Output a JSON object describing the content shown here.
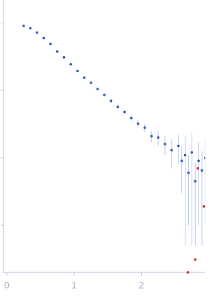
{
  "chart_data": {
    "type": "scatter",
    "ylog": true,
    "show_ytick_labels": false,
    "xlim": [
      -0.05,
      2.95
    ],
    "ylim": [
      0.0002,
      2.2
    ],
    "xticks": [
      0,
      1,
      2
    ],
    "yticks": [
      1,
      0.1,
      0.01,
      0.001
    ],
    "series": [
      {
        "color": "#3a62c0",
        "error_color": "#b4c6ea",
        "x": [
          0.25,
          0.35,
          0.45,
          0.55,
          0.65,
          0.75,
          0.85,
          0.95,
          1.05,
          1.15,
          1.25,
          1.35,
          1.45,
          1.55,
          1.65,
          1.75,
          1.85,
          1.95,
          2.05,
          2.15,
          2.25,
          2.35,
          2.45,
          2.55,
          2.6,
          2.65,
          2.7,
          2.75,
          2.8,
          2.85,
          2.9,
          2.95
        ],
        "values": [
          0.91,
          0.84,
          0.72,
          0.6,
          0.49,
          0.38,
          0.31,
          0.245,
          0.195,
          0.155,
          0.13,
          0.105,
          0.086,
          0.07,
          0.057,
          0.048,
          0.039,
          0.032,
          0.028,
          0.021,
          0.02,
          0.016,
          0.013,
          0.015,
          0.009,
          0.011,
          0.006,
          0.012,
          0.0045,
          0.009,
          0.0065,
          0.01
        ],
        "errors": [
          0.005,
          0.005,
          0.005,
          0.005,
          0.005,
          0.005,
          0.005,
          0.005,
          0.004,
          0.004,
          0.004,
          0.004,
          0.004,
          0.004,
          0.004,
          0.004,
          0.004,
          0.004,
          0.004,
          0.004,
          0.005,
          0.005,
          0.006,
          0.007,
          0.006,
          0.0105,
          0.005,
          0.0115,
          0.004,
          0.008,
          0.006,
          0.009
        ]
      },
      {
        "color": "#d9342b",
        "x": [
          2.69,
          2.8,
          2.84,
          2.93
        ],
        "values": [
          0.0002,
          0.00031,
          0.007,
          0.0019
        ]
      }
    ]
  }
}
